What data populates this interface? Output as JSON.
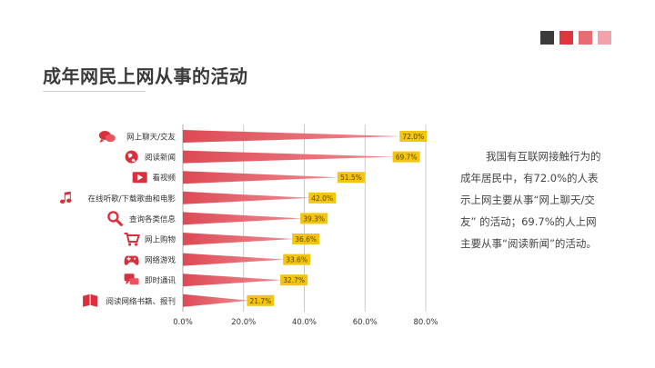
{
  "page": {
    "title": "成年网民上网从事的活动",
    "deco_colors": [
      "#3b3b3b",
      "#e0343f",
      "#e96b73",
      "#f0a3a8"
    ],
    "paragraph": "我国有互联网接触行为的成年居民中，有72.0%的人表示上网主要从事“网上聊天/交友” 的活动；69.7%的人上网主要从事“阅读新闻”的活动。"
  },
  "colors": {
    "bar": "#dd4a55",
    "bar_light": "#f08a91",
    "label_box": "#f2c511",
    "icon": "#d9303e",
    "grid": "#bcbcbc"
  },
  "chart_data": {
    "type": "bar",
    "orientation": "horizontal",
    "categories": [
      "网上聊天/交友",
      "阅读新闻",
      "看视频",
      "在线听歌/下载歌曲和电影",
      "查询各类信息",
      "网上购物",
      "网络游戏",
      "即时通讯",
      "阅读网络书籍、报刊"
    ],
    "icons": [
      "chat-bubbles-icon",
      "globe-icon",
      "video-play-icon",
      "music-note-icon",
      "magnifier-icon",
      "shopping-cart-icon",
      "gamepad-icon",
      "message-bubbles-icon",
      "book-icon"
    ],
    "values": [
      72.0,
      69.7,
      51.5,
      42.0,
      39.3,
      36.6,
      33.6,
      32.7,
      21.7
    ],
    "value_labels": [
      "72.0%",
      "69.7%",
      "51.5%",
      "42.0%",
      "39.3%",
      "36.6%",
      "33.6%",
      "32.7%",
      "21.7%"
    ],
    "xlim": [
      0,
      80
    ],
    "xticks": [
      "0.0%",
      "20.0%",
      "40.0%",
      "60.0%",
      "80.0%"
    ],
    "grid": true
  }
}
